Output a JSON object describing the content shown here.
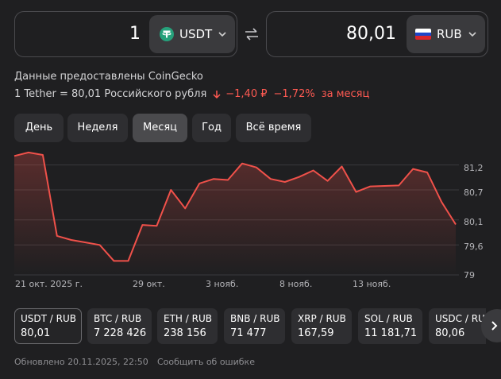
{
  "converter": {
    "from": {
      "amount": "1",
      "currency": "USDT"
    },
    "to": {
      "amount": "80,01",
      "currency": "RUB"
    }
  },
  "info": {
    "source": "Данные предоставлены CoinGecko",
    "rate": "1 Tether = 80,01 Российского рубля",
    "change_abs": "−1,40 ₽",
    "change_pct": "−1,72%",
    "change_period": "за месяц"
  },
  "tabs": [
    {
      "label": "День"
    },
    {
      "label": "Неделя"
    },
    {
      "label": "Месяц",
      "active": true
    },
    {
      "label": "Год"
    },
    {
      "label": "Всё время"
    }
  ],
  "chart_data": {
    "type": "area",
    "x_labels": [
      "21 окт. 2025 г.",
      "29 окт.",
      "3 нояб.",
      "8 нояб.",
      "13 нояб."
    ],
    "y_ticks": [
      "81,2",
      "80,7",
      "80,1",
      "79,6",
      "79"
    ],
    "ylim": [
      79,
      81.4
    ],
    "values": [
      81.38,
      81.45,
      81.4,
      79.78,
      79.7,
      79.65,
      79.6,
      79.28,
      79.28,
      80.0,
      79.98,
      80.7,
      80.33,
      80.83,
      80.92,
      80.9,
      81.23,
      81.15,
      80.92,
      80.86,
      80.96,
      81.09,
      80.88,
      81.17,
      80.66,
      80.77,
      80.78,
      80.79,
      81.12,
      81.05,
      80.46,
      80.01
    ],
    "line_color": "#f0514a",
    "grid": true
  },
  "pairs": [
    {
      "name": "USDT / RUB",
      "value": "80,01",
      "active": true
    },
    {
      "name": "BTC / RUB",
      "value": "7 228 426"
    },
    {
      "name": "ETH / RUB",
      "value": "238 156"
    },
    {
      "name": "BNB / RUB",
      "value": "71 477"
    },
    {
      "name": "XRP / RUB",
      "value": "167,59"
    },
    {
      "name": "SOL / RUB",
      "value": "11 181,71"
    },
    {
      "name": "USDC / RUB",
      "value": "80,06"
    }
  ],
  "footer": {
    "updated": "Обновлено 20.11.2025, 22:50",
    "report": "Сообщить об ошибке"
  },
  "colors": {
    "background": "#1f1f21",
    "negative": "#ff5a52",
    "tether": "#26a17b"
  },
  "icons": {
    "swap": "swap-arrows-icon",
    "tether": "tether-logo-icon",
    "flag": "russia-flag-icon",
    "chevron": "chevron-down-icon",
    "down_arrow": "arrow-down-icon",
    "next": "chevron-right-icon"
  }
}
